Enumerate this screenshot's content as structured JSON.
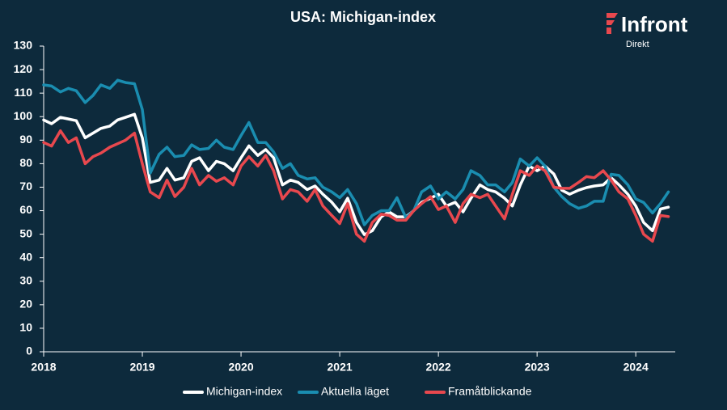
{
  "chart_data": {
    "type": "line",
    "title": "USA: Michigan-index",
    "logo": {
      "name": "Infront",
      "sub": "Direkt"
    },
    "x": [
      2018,
      2018.08,
      2018.17,
      2018.25,
      2018.33,
      2018.42,
      2018.5,
      2018.58,
      2018.67,
      2018.75,
      2018.83,
      2018.92,
      2019,
      2019.08,
      2019.17,
      2019.25,
      2019.33,
      2019.42,
      2019.5,
      2019.58,
      2019.67,
      2019.75,
      2019.83,
      2019.92,
      2020,
      2020.08,
      2020.17,
      2020.25,
      2020.33,
      2020.42,
      2020.5,
      2020.58,
      2020.67,
      2020.75,
      2020.83,
      2020.92,
      2021,
      2021.08,
      2021.17,
      2021.25,
      2021.33,
      2021.42,
      2021.5,
      2021.58,
      2021.67,
      2021.75,
      2021.83,
      2021.92,
      2022,
      2022.08,
      2022.17,
      2022.25,
      2022.33,
      2022.42,
      2022.5,
      2022.58,
      2022.67,
      2022.75,
      2022.83,
      2022.92,
      2023,
      2023.08,
      2023.17,
      2023.25,
      2023.33,
      2023.42,
      2023.5,
      2023.58,
      2023.67,
      2023.75,
      2023.83,
      2023.92,
      2024,
      2024.08,
      2024.17,
      2024.25,
      2024.33
    ],
    "series": [
      {
        "name": "Michigan-index",
        "color": "#ffffff",
        "values": [
          98.6,
          97,
          99.7,
          99,
          98.3,
          91,
          93,
          95,
          96,
          98.6,
          99.7,
          101,
          91,
          72,
          73,
          78,
          73,
          74,
          81,
          82.5,
          77,
          81,
          80,
          77,
          82.5,
          87.6,
          83.5,
          86,
          82.5,
          71,
          73,
          72,
          69,
          70.5,
          67,
          63.6,
          59.5,
          65.3,
          55,
          49.8,
          51.5,
          57.4,
          59.5,
          57.4,
          57.4,
          60,
          63.6,
          65.3,
          67,
          62,
          63.6,
          59.5,
          65.3,
          71,
          69,
          68,
          65.3,
          62,
          71,
          79,
          77,
          79,
          75.6,
          68.7,
          67,
          68.7,
          69.8,
          70.5,
          71,
          74,
          71,
          67,
          62,
          55,
          51.5,
          60.7,
          61.5
        ]
      },
      {
        "name": "Aktuella läget",
        "color": "#1a8db0",
        "values": [
          113.5,
          113,
          110.5,
          112,
          111,
          106,
          109,
          113.5,
          112,
          115.5,
          114.5,
          114,
          103,
          76,
          84,
          87,
          83,
          83.5,
          88,
          86,
          86.5,
          90,
          87,
          86,
          92,
          97.5,
          89,
          89,
          85,
          78,
          80,
          75,
          73.5,
          74,
          70,
          68,
          65.5,
          69,
          63,
          54,
          58,
          60,
          60,
          65.5,
          57,
          60,
          68,
          70.5,
          65,
          68,
          65,
          69,
          77,
          75,
          71,
          71,
          68,
          72,
          82,
          79,
          82.5,
          79,
          70,
          66,
          63,
          61,
          62,
          64,
          64,
          75.5,
          75,
          71,
          65,
          63.5,
          59,
          63,
          68
        ]
      },
      {
        "name": "Framåtblickande",
        "color": "#e8484e",
        "values": [
          89,
          87.5,
          94,
          89,
          91,
          80,
          83,
          84.5,
          87,
          88.5,
          90,
          93,
          80,
          68,
          65.5,
          73,
          66,
          70,
          78,
          71,
          75,
          72.5,
          74,
          71,
          79,
          83,
          79,
          83.5,
          77,
          65,
          69,
          68,
          64,
          69,
          62,
          58,
          54.5,
          63,
          50,
          47,
          55,
          58.5,
          58,
          56,
          56,
          60,
          63,
          66,
          60.5,
          62,
          55,
          63,
          67,
          65.5,
          67,
          62,
          56.5,
          67,
          77,
          75,
          79,
          77,
          70,
          69.5,
          69.5,
          72,
          74.5,
          74,
          77,
          73,
          68,
          65,
          58,
          50,
          47,
          58,
          57.5
        ]
      }
    ],
    "xlim": [
      2018,
      2024.4
    ],
    "xticks": [
      2018,
      2019,
      2020,
      2021,
      2022,
      2023,
      2024
    ],
    "ylim": [
      0,
      130
    ],
    "yticks": [
      0,
      10,
      20,
      30,
      40,
      50,
      60,
      70,
      80,
      90,
      100,
      110,
      120,
      130
    ],
    "grid": false
  }
}
